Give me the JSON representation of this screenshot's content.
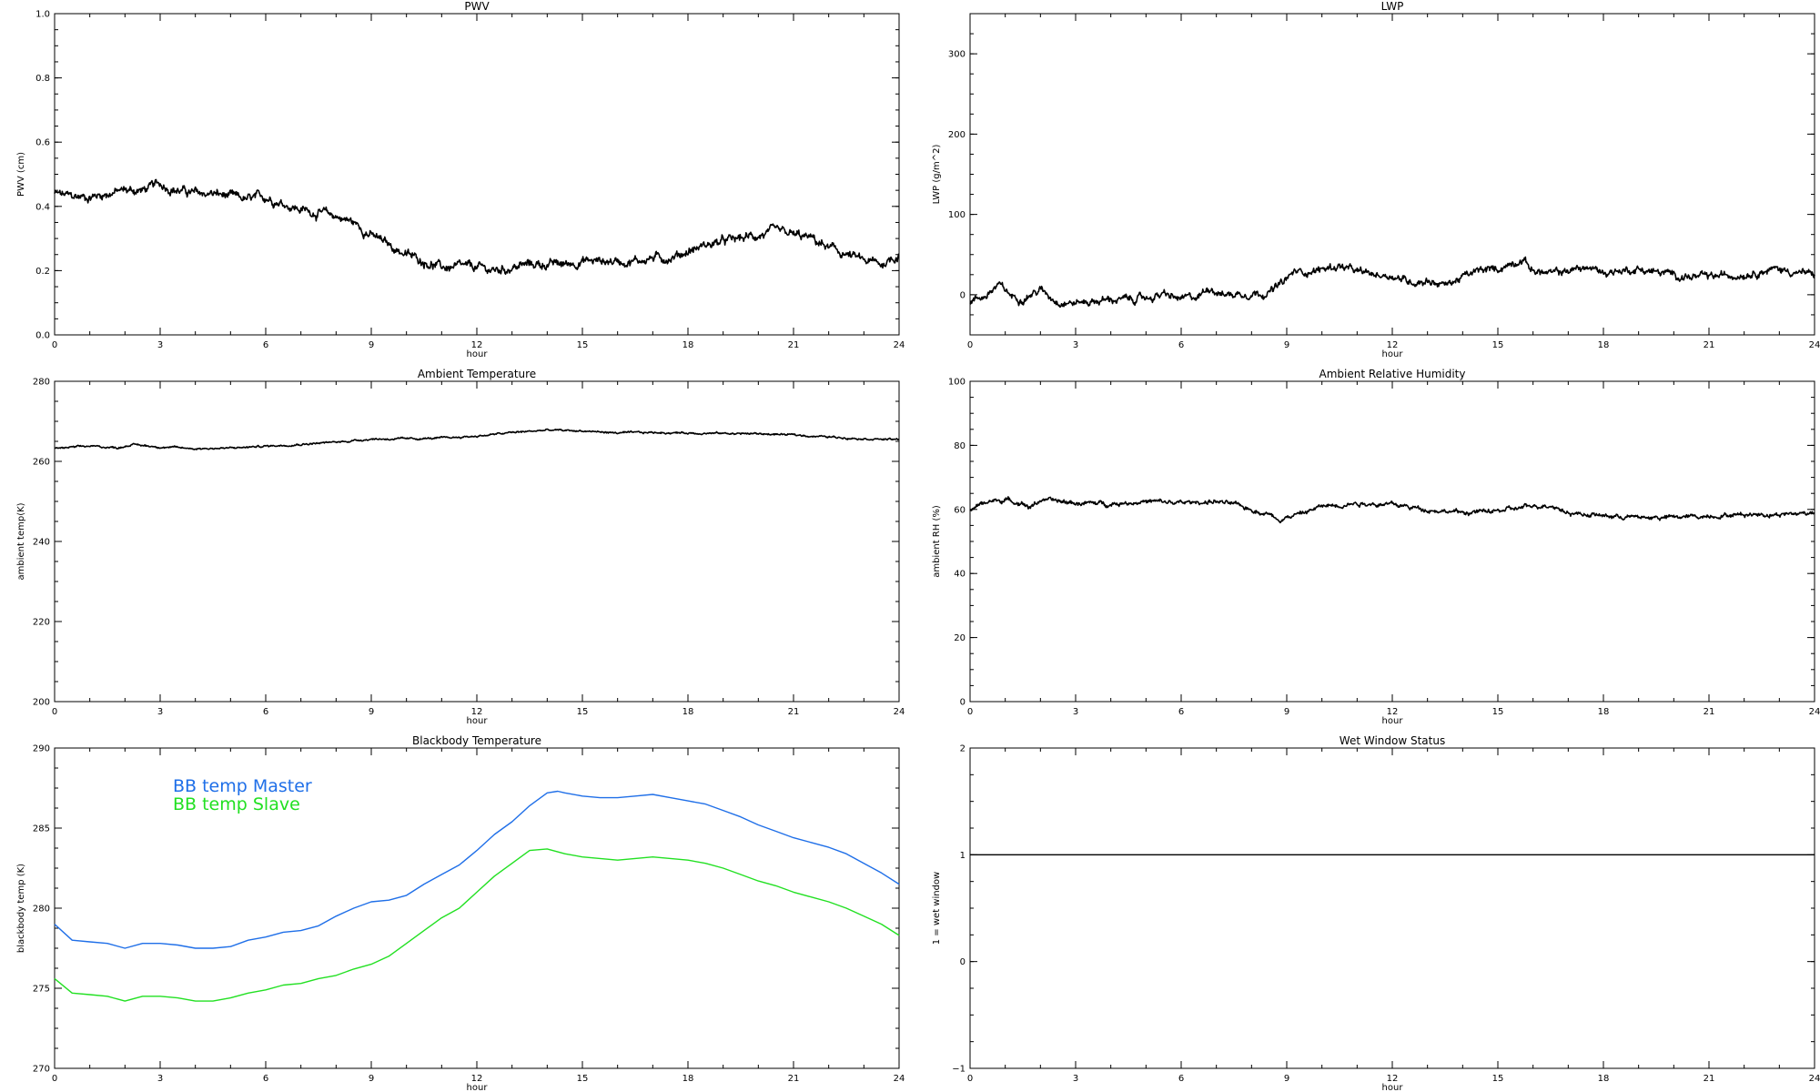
{
  "colors": {
    "axes": "#000000",
    "series": "#000000",
    "bb_master": "#1f6fe8",
    "bb_slave": "#22e022"
  },
  "chart_data": [
    {
      "id": "pwv",
      "type": "line",
      "title": "PWV",
      "xlabel": "hour",
      "ylabel": "PWV (cm)",
      "xlim": [
        0,
        24
      ],
      "ylim": [
        0.0,
        1.0
      ],
      "xticks": [
        "0",
        "3",
        "6",
        "9",
        "12",
        "15",
        "18",
        "21",
        "24"
      ],
      "yticks": [
        "0.0",
        "0.2",
        "0.4",
        "0.6",
        "0.8",
        "1.0"
      ],
      "grid": false,
      "series": [
        {
          "noise": 0.012,
          "x": [
            0,
            0.5,
            1,
            1.5,
            2,
            2.5,
            3,
            3.5,
            4,
            4.5,
            5,
            5.5,
            6,
            6.5,
            7,
            7.5,
            8,
            8.5,
            9,
            9.5,
            10,
            10.5,
            11,
            11.5,
            12,
            12.5,
            13,
            13.5,
            14,
            14.5,
            15,
            15.5,
            16,
            16.5,
            17,
            17.5,
            18,
            18.5,
            19,
            19.5,
            20,
            20.5,
            21,
            21.5,
            22,
            22.5,
            23,
            23.5,
            24
          ],
          "y": [
            0.44,
            0.43,
            0.43,
            0.44,
            0.45,
            0.45,
            0.47,
            0.45,
            0.44,
            0.44,
            0.43,
            0.42,
            0.43,
            0.41,
            0.39,
            0.38,
            0.37,
            0.35,
            0.31,
            0.28,
            0.25,
            0.23,
            0.21,
            0.21,
            0.21,
            0.2,
            0.21,
            0.22,
            0.22,
            0.22,
            0.23,
            0.23,
            0.23,
            0.23,
            0.24,
            0.24,
            0.26,
            0.28,
            0.29,
            0.3,
            0.31,
            0.32,
            0.31,
            0.3,
            0.27,
            0.25,
            0.23,
            0.22,
            0.25
          ]
        }
      ]
    },
    {
      "id": "lwp",
      "type": "line",
      "title": "LWP",
      "xlabel": "hour",
      "ylabel": "LWP (g/m^2)",
      "xlim": [
        0,
        24
      ],
      "ylim": [
        -50,
        350
      ],
      "xticks": [
        "0",
        "3",
        "6",
        "9",
        "12",
        "15",
        "18",
        "21",
        "24"
      ],
      "yticks": [
        "0",
        "100",
        "200",
        "300"
      ],
      "yticks_values": [
        0,
        100,
        200,
        300
      ],
      "grid": false,
      "series": [
        {
          "noise": 4,
          "x": [
            0,
            0.5,
            0.8,
            1.2,
            1.5,
            2,
            2.5,
            3,
            3.5,
            4,
            4.5,
            5,
            5.5,
            6,
            6.5,
            6.8,
            7.2,
            8,
            8.5,
            8.9,
            9.2,
            9.8,
            10.5,
            11,
            11.5,
            12,
            12.5,
            13,
            13.5,
            14,
            14.5,
            15,
            15.7,
            16,
            16.5,
            17,
            17.5,
            18,
            18.5,
            19,
            19.5,
            20,
            20.5,
            21,
            21.5,
            22,
            22.5,
            23,
            23.5,
            24
          ],
          "y": [
            -8,
            0,
            12,
            -2,
            -4,
            6,
            -8,
            -10,
            -8,
            -6,
            -6,
            -4,
            0,
            -6,
            -2,
            10,
            0,
            2,
            3,
            15,
            28,
            30,
            36,
            28,
            25,
            24,
            16,
            18,
            12,
            22,
            30,
            32,
            45,
            30,
            26,
            30,
            34,
            28,
            30,
            32,
            28,
            25,
            22,
            22,
            24,
            26,
            30,
            32,
            28,
            25
          ]
        }
      ]
    },
    {
      "id": "ambient_temp",
      "type": "line",
      "title": "Ambient Temperature",
      "xlabel": "hour",
      "ylabel": "ambient temp(K)",
      "xlim": [
        0,
        24
      ],
      "ylim": [
        200,
        280
      ],
      "xticks": [
        "0",
        "3",
        "6",
        "9",
        "12",
        "15",
        "18",
        "21",
        "24"
      ],
      "yticks": [
        "200",
        "220",
        "240",
        "260",
        "280"
      ],
      "grid": false,
      "series": [
        {
          "noise": 0.2,
          "x": [
            0,
            1,
            1.8,
            2.2,
            3,
            4,
            5,
            6,
            7,
            8,
            9,
            10,
            11,
            12,
            13,
            14,
            15,
            16,
            17,
            18,
            19,
            20,
            21,
            22,
            23,
            24
          ],
          "y": [
            263.2,
            263.8,
            263.4,
            264.2,
            263.6,
            263.2,
            263.3,
            263.8,
            264.3,
            264.8,
            265.6,
            265.6,
            265.8,
            266.3,
            267.2,
            267.8,
            267.6,
            267.1,
            267.2,
            267.1,
            267.0,
            266.9,
            266.6,
            266.1,
            265.7,
            265.4
          ]
        }
      ]
    },
    {
      "id": "ambient_rh",
      "type": "line",
      "title": "Ambient Relative Humidity",
      "xlabel": "hour",
      "ylabel": "ambient RH (%)",
      "xlim": [
        0,
        24
      ],
      "ylim": [
        0,
        100
      ],
      "xticks": [
        "0",
        "3",
        "6",
        "9",
        "12",
        "15",
        "18",
        "21",
        "24"
      ],
      "yticks": [
        "0",
        "20",
        "40",
        "60",
        "80",
        "100"
      ],
      "grid": false,
      "series": [
        {
          "noise": 0.6,
          "x": [
            0,
            0.5,
            1,
            1.5,
            1.7,
            2,
            2.5,
            3,
            4,
            5,
            6,
            7,
            7.5,
            8,
            8.5,
            8.8,
            9.5,
            10,
            11,
            12,
            13,
            14,
            15,
            16,
            16.5,
            17,
            18,
            19,
            20,
            21,
            22,
            23,
            24
          ],
          "y": [
            60,
            62.5,
            63,
            62,
            60.5,
            63,
            62.5,
            62,
            61.8,
            62.5,
            62,
            62.5,
            61.5,
            60,
            58.5,
            57,
            59,
            61,
            62,
            61.5,
            60,
            59,
            59.5,
            61,
            61.5,
            59,
            58,
            57.5,
            57.5,
            58,
            58.5,
            58.5,
            59
          ]
        }
      ]
    },
    {
      "id": "blackbody_temp",
      "type": "line",
      "title": "Blackbody Temperature",
      "xlabel": "hour",
      "ylabel": "blackbody temp (K)",
      "xlim": [
        0,
        24
      ],
      "ylim": [
        270,
        290
      ],
      "xticks": [
        "0",
        "3",
        "6",
        "9",
        "12",
        "15",
        "18",
        "21",
        "24"
      ],
      "yticks": [
        "270",
        "275",
        "280",
        "285",
        "290"
      ],
      "grid": false,
      "legend_location": "upper-left",
      "series": [
        {
          "name": "BB temp Master",
          "color_key": "bb_master",
          "x": [
            0,
            0.5,
            1,
            1.5,
            2,
            2.5,
            3,
            3.5,
            4,
            4.5,
            5,
            5.5,
            6,
            6.5,
            7,
            7.5,
            8,
            8.5,
            9,
            9.5,
            10,
            10.5,
            11,
            11.5,
            12,
            12.5,
            13,
            13.5,
            14,
            14.3,
            14.5,
            15,
            15.5,
            16,
            16.5,
            17,
            17.5,
            18,
            18.5,
            19,
            19.5,
            20,
            20.5,
            21,
            21.5,
            22,
            22.5,
            23,
            23.5,
            24
          ],
          "y": [
            279.0,
            278.0,
            277.9,
            277.8,
            277.5,
            277.8,
            277.8,
            277.7,
            277.5,
            277.5,
            277.6,
            278.0,
            278.2,
            278.5,
            278.6,
            278.9,
            279.5,
            280.0,
            280.4,
            280.5,
            280.8,
            281.5,
            282.1,
            282.7,
            283.6,
            284.6,
            285.4,
            286.4,
            287.2,
            287.3,
            287.2,
            287.0,
            286.9,
            286.9,
            287.0,
            287.1,
            286.9,
            286.7,
            286.5,
            286.1,
            285.7,
            285.2,
            284.8,
            284.4,
            284.1,
            283.8,
            283.4,
            282.8,
            282.2,
            281.5
          ]
        },
        {
          "name": "BB temp Slave",
          "color_key": "bb_slave",
          "x": [
            0,
            0.5,
            1,
            1.5,
            2,
            2.5,
            3,
            3.5,
            4,
            4.5,
            5,
            5.5,
            6,
            6.5,
            7,
            7.5,
            8,
            8.5,
            9,
            9.5,
            10,
            10.5,
            11,
            11.5,
            12,
            12.5,
            13,
            13.5,
            14,
            14.5,
            15,
            15.5,
            16,
            16.5,
            17,
            17.5,
            18,
            18.5,
            19,
            19.5,
            20,
            20.5,
            21,
            21.5,
            22,
            22.5,
            23,
            23.5,
            24
          ],
          "y": [
            275.6,
            274.7,
            274.6,
            274.5,
            274.2,
            274.5,
            274.5,
            274.4,
            274.2,
            274.2,
            274.4,
            274.7,
            274.9,
            275.2,
            275.3,
            275.6,
            275.8,
            276.2,
            276.5,
            277.0,
            277.8,
            278.6,
            279.4,
            280.0,
            281.0,
            282.0,
            282.8,
            283.6,
            283.7,
            283.4,
            283.2,
            283.1,
            283.0,
            283.1,
            283.2,
            283.1,
            283.0,
            282.8,
            282.5,
            282.1,
            281.7,
            281.4,
            281.0,
            280.7,
            280.4,
            280.0,
            279.5,
            279.0,
            278.3
          ]
        }
      ]
    },
    {
      "id": "wet_window",
      "type": "line",
      "title": "Wet Window Status",
      "xlabel": "hour",
      "ylabel": "1 = wet window",
      "xlim": [
        0,
        24
      ],
      "ylim": [
        -1,
        2
      ],
      "xticks": [
        "0",
        "3",
        "6",
        "9",
        "12",
        "15",
        "18",
        "21",
        "24"
      ],
      "yticks": [
        "−1",
        "0",
        "1",
        "2"
      ],
      "yticks_values": [
        -1,
        0,
        1,
        2
      ],
      "grid": false,
      "series": [
        {
          "x": [
            0,
            24
          ],
          "y": [
            1,
            1
          ]
        }
      ]
    }
  ]
}
